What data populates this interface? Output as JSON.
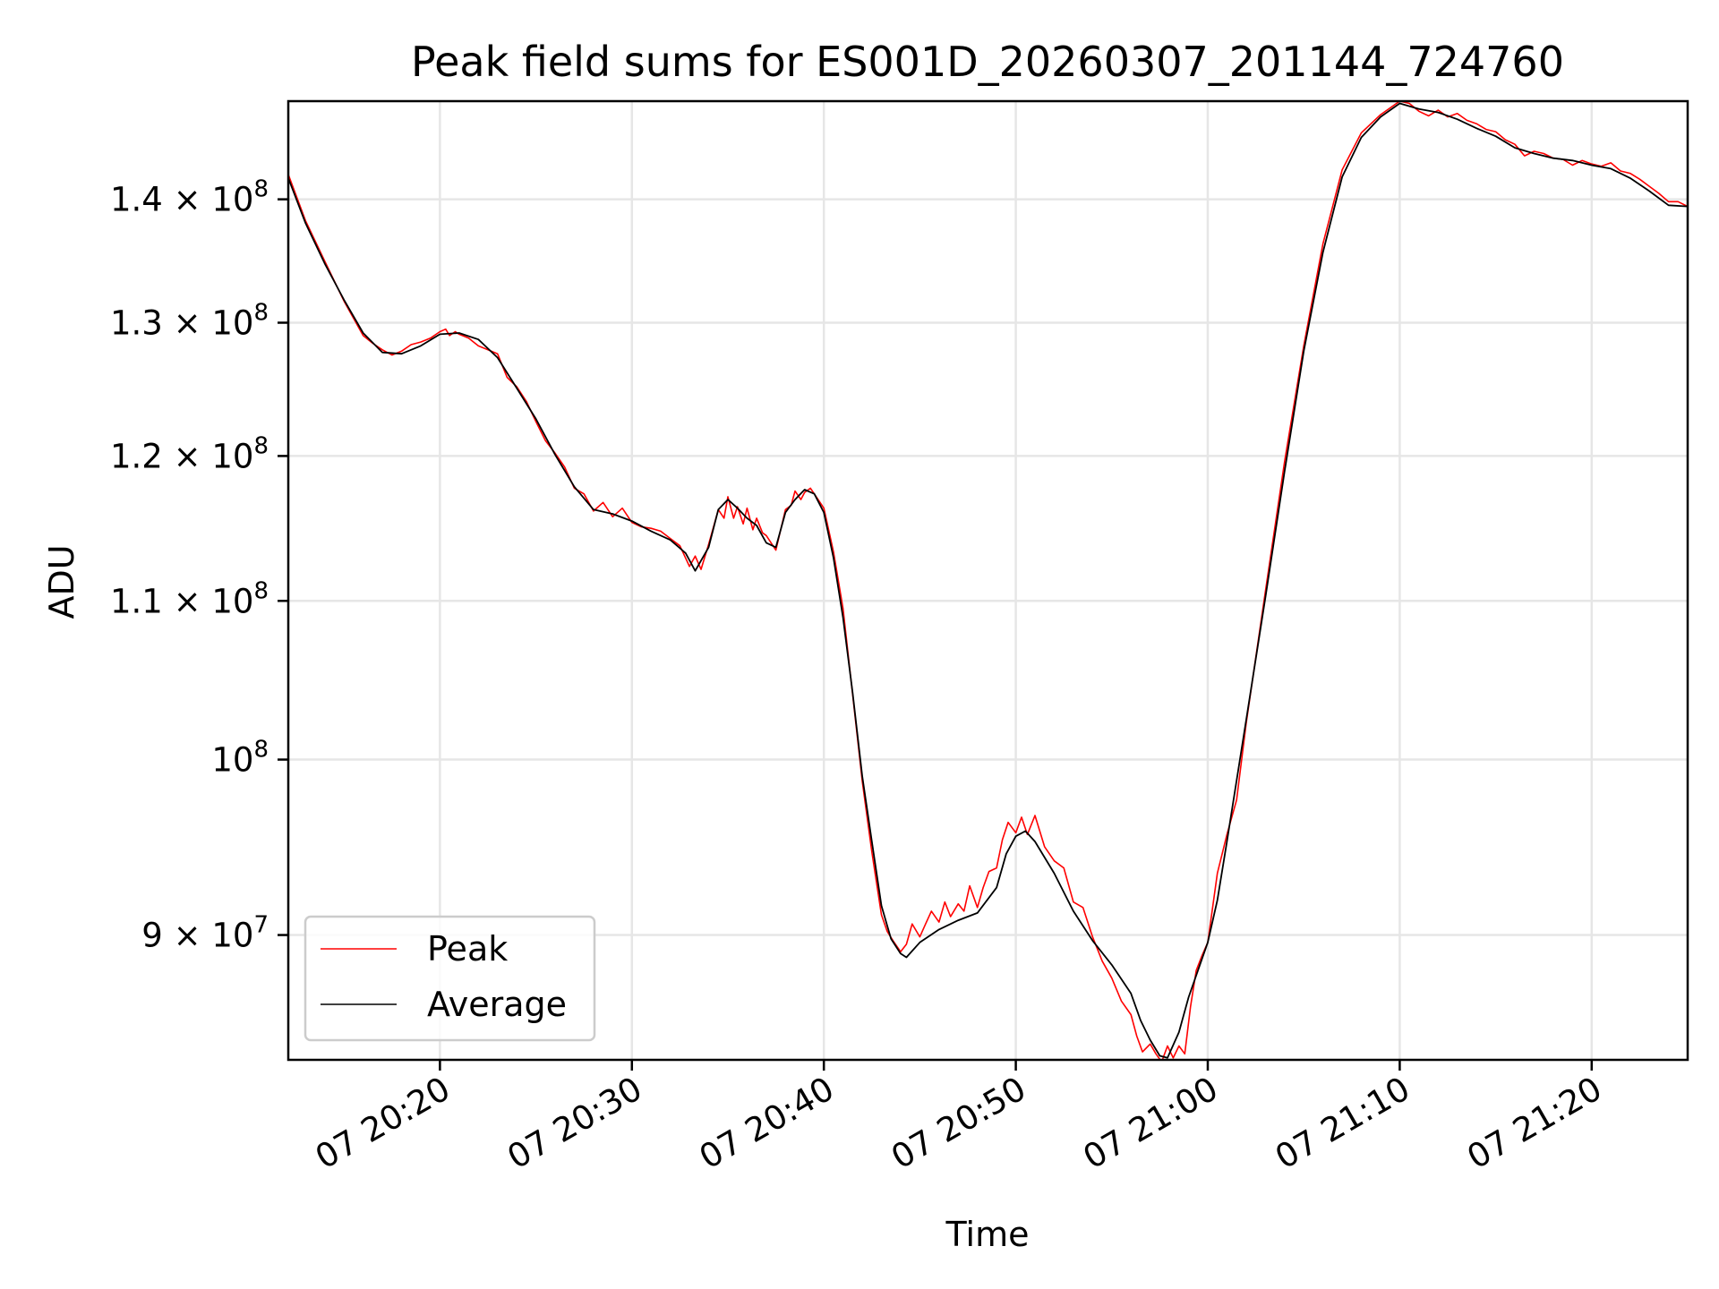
{
  "chart_data": {
    "type": "line",
    "title": "Peak field sums for ES001D_20260307_201144_724760",
    "xlabel": "Time",
    "ylabel": "ADU",
    "y_scale": "log",
    "x_unit": "minutes after 20:00",
    "xlim": [
      12.1,
      85.0
    ],
    "ylim": [
      83500000,
      148500000
    ],
    "grid": true,
    "legend_position": "lower-left",
    "x_ticks": [
      {
        "value": 20,
        "label": "07 20:20"
      },
      {
        "value": 30,
        "label": "07 20:30"
      },
      {
        "value": 40,
        "label": "07 20:40"
      },
      {
        "value": 50,
        "label": "07 20:50"
      },
      {
        "value": 60,
        "label": "07 21:00"
      },
      {
        "value": 70,
        "label": "07 21:10"
      },
      {
        "value": 80,
        "label": "07 21:20"
      }
    ],
    "y_ticks": [
      {
        "value": 90000000,
        "mantissa": "9",
        "times": " × ",
        "base": "10",
        "exp": "7"
      },
      {
        "value": 100000000,
        "mantissa": "",
        "times": "",
        "base": "10",
        "exp": "8"
      },
      {
        "value": 110000000,
        "mantissa": "1.1",
        "times": " × ",
        "base": "10",
        "exp": "8"
      },
      {
        "value": 120000000,
        "mantissa": "1.2",
        "times": " × ",
        "base": "10",
        "exp": "8"
      },
      {
        "value": 130000000,
        "mantissa": "1.3",
        "times": " × ",
        "base": "10",
        "exp": "8"
      },
      {
        "value": 140000000,
        "mantissa": "1.4",
        "times": " × ",
        "base": "10",
        "exp": "8"
      }
    ],
    "series": [
      {
        "name": "Average",
        "color": "#000000",
        "x": [
          12.1,
          13.0,
          14.0,
          15.0,
          16.0,
          17.0,
          18.0,
          19.0,
          20.0,
          21.0,
          22.0,
          23.0,
          24.0,
          25.0,
          26.0,
          27.0,
          28.0,
          29.0,
          30.0,
          31.0,
          32.0,
          32.8,
          33.3,
          34.0,
          34.5,
          35.0,
          35.5,
          36.0,
          36.5,
          37.0,
          37.5,
          38.0,
          38.5,
          39.0,
          39.5,
          40.0,
          40.5,
          41.0,
          41.5,
          42.0,
          42.5,
          43.0,
          43.5,
          44.0,
          44.3,
          45.0,
          46.0,
          47.0,
          48.0,
          49.0,
          49.5,
          50.0,
          50.5,
          51.0,
          52.0,
          53.0,
          54.0,
          55.0,
          56.0,
          56.5,
          57.0,
          57.5,
          57.9,
          58.5,
          59.0,
          60.0,
          60.5,
          61.0,
          62.0,
          63.0,
          64.0,
          65.0,
          66.0,
          67.0,
          68.0,
          69.0,
          70.0,
          71.0,
          72.0,
          73.0,
          74.0,
          75.0,
          76.0,
          77.0,
          78.0,
          79.0,
          80.0,
          81.0,
          82.0,
          83.0,
          84.0,
          85.0
        ],
        "y": [
          141800000,
          138000000,
          134700000,
          131800000,
          129200000,
          127700000,
          127600000,
          128200000,
          129100000,
          129200000,
          128700000,
          127300000,
          125000000,
          122700000,
          120100000,
          117800000,
          116200000,
          115900000,
          115400000,
          114700000,
          114100000,
          113200000,
          112000000,
          113600000,
          116200000,
          116900000,
          116300000,
          115600000,
          115100000,
          113900000,
          113600000,
          116000000,
          116900000,
          117600000,
          117300000,
          116000000,
          112900000,
          108900000,
          104100000,
          99000000,
          95200000,
          91600000,
          89800000,
          89000000,
          88800000,
          89600000,
          90300000,
          90800000,
          91200000,
          92600000,
          94500000,
          95500000,
          95800000,
          95200000,
          93400000,
          91300000,
          89700000,
          88400000,
          86900000,
          85500000,
          84500000,
          83700000,
          83600000,
          84900000,
          86700000,
          89600000,
          91900000,
          95200000,
          102400000,
          110200000,
          118900000,
          127800000,
          135600000,
          141900000,
          145300000,
          147100000,
          148300000,
          147800000,
          147500000,
          146900000,
          146100000,
          145400000,
          144400000,
          143900000,
          143500000,
          143300000,
          142900000,
          142600000,
          141800000,
          140700000,
          139500000,
          139400000
        ]
      },
      {
        "name": "Peak",
        "color": "#ff0000",
        "x": [
          12.1,
          13.0,
          14.0,
          15.0,
          16.0,
          16.5,
          17.0,
          17.5,
          18.0,
          18.5,
          19.0,
          19.5,
          20.0,
          20.3,
          20.5,
          20.8,
          21.0,
          21.5,
          22.0,
          22.5,
          23.0,
          23.5,
          24.0,
          24.5,
          25.0,
          25.5,
          26.0,
          26.5,
          27.0,
          27.5,
          28.0,
          28.5,
          29.0,
          29.5,
          30.0,
          30.5,
          31.0,
          31.5,
          32.0,
          32.5,
          33.0,
          33.3,
          33.6,
          34.0,
          34.5,
          34.8,
          35.0,
          35.3,
          35.5,
          35.8,
          36.0,
          36.3,
          36.5,
          36.8,
          37.0,
          37.3,
          37.5,
          38.0,
          38.3,
          38.5,
          38.8,
          39.0,
          39.3,
          39.5,
          40.0,
          40.5,
          41.0,
          41.5,
          42.0,
          42.5,
          43.0,
          43.3,
          43.6,
          44.0,
          44.3,
          44.6,
          45.0,
          45.3,
          45.6,
          46.0,
          46.3,
          46.6,
          47.0,
          47.3,
          47.6,
          48.0,
          48.3,
          48.6,
          49.0,
          49.3,
          49.6,
          50.0,
          50.3,
          50.6,
          51.0,
          51.5,
          52.0,
          52.5,
          53.0,
          53.5,
          54.0,
          54.5,
          55.0,
          55.5,
          56.0,
          56.3,
          56.6,
          57.0,
          57.3,
          57.6,
          57.9,
          58.2,
          58.5,
          58.8,
          59.1,
          59.4,
          59.7,
          60.0,
          60.5,
          61.0,
          61.5,
          62.0,
          63.0,
          64.0,
          65.0,
          66.0,
          67.0,
          68.0,
          69.0,
          70.0,
          70.5,
          71.0,
          71.5,
          72.0,
          72.5,
          73.0,
          73.5,
          74.0,
          74.5,
          75.0,
          75.5,
          76.0,
          76.5,
          77.0,
          77.5,
          78.0,
          78.5,
          79.0,
          79.5,
          80.0,
          80.5,
          81.0,
          81.5,
          82.0,
          82.5,
          83.0,
          83.5,
          84.0,
          84.5,
          85.0
        ],
        "y": [
          142100000,
          138200000,
          134900000,
          131700000,
          129000000,
          128400000,
          127900000,
          127500000,
          127800000,
          128300000,
          128500000,
          128800000,
          129300000,
          129500000,
          129000000,
          129300000,
          129100000,
          128800000,
          128200000,
          127900000,
          127600000,
          125800000,
          125100000,
          124000000,
          122500000,
          121100000,
          120200000,
          119200000,
          117700000,
          117300000,
          116100000,
          116700000,
          115700000,
          116300000,
          115300000,
          115000000,
          114900000,
          114700000,
          114200000,
          113700000,
          112300000,
          113000000,
          112100000,
          113800000,
          116200000,
          115600000,
          117100000,
          115600000,
          116400000,
          115200000,
          116300000,
          114800000,
          115600000,
          114600000,
          114400000,
          113800000,
          113400000,
          116200000,
          116500000,
          117500000,
          116900000,
          117400000,
          117700000,
          117300000,
          116300000,
          113300000,
          109500000,
          104000000,
          98700000,
          94600000,
          91100000,
          90200000,
          89700000,
          89100000,
          89500000,
          90600000,
          89900000,
          90600000,
          91300000,
          90700000,
          91800000,
          91000000,
          91700000,
          91300000,
          92700000,
          91500000,
          92600000,
          93500000,
          93700000,
          95300000,
          96300000,
          95700000,
          96600000,
          95600000,
          96700000,
          94900000,
          94100000,
          93700000,
          91800000,
          91500000,
          89900000,
          88600000,
          87700000,
          86500000,
          85800000,
          84700000,
          83900000,
          84300000,
          83800000,
          83400000,
          84200000,
          83600000,
          84200000,
          83800000,
          86200000,
          88100000,
          88900000,
          89600000,
          93400000,
          95600000,
          97600000,
          102200000,
          110600000,
          119600000,
          128200000,
          136300000,
          142500000,
          145700000,
          147300000,
          148500000,
          148300000,
          147600000,
          147200000,
          147700000,
          147100000,
          147400000,
          146800000,
          146500000,
          146000000,
          145800000,
          145100000,
          144700000,
          143700000,
          144100000,
          143900000,
          143500000,
          143400000,
          142900000,
          143300000,
          143000000,
          142800000,
          143100000,
          142400000,
          142200000,
          141700000,
          141100000,
          140500000,
          139800000,
          139800000,
          139400000
        ]
      }
    ]
  }
}
